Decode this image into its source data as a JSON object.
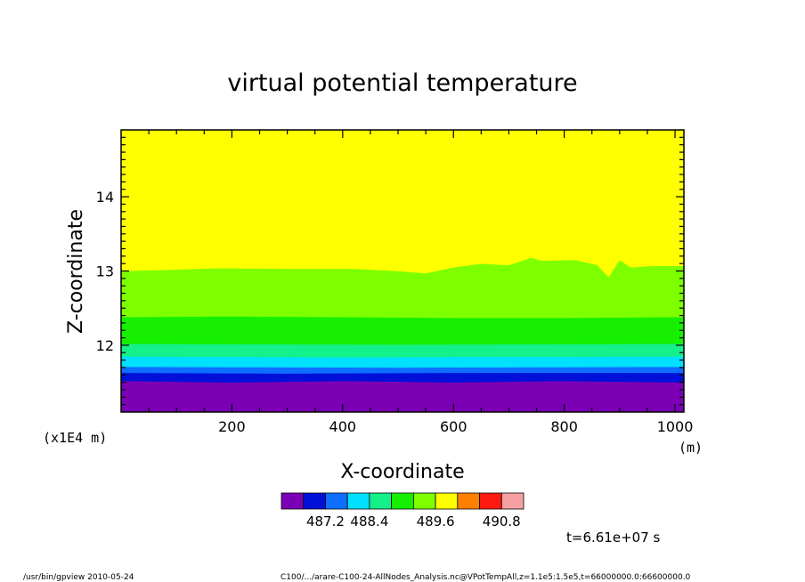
{
  "chart_data": {
    "type": "contour",
    "title": "virtual potential temperature",
    "xlabel": "X-coordinate",
    "ylabel": "Z-coordinate",
    "x_unit": "(m)",
    "y_scale_note": "(x1E4 m)",
    "xlim": [
      0,
      1016
    ],
    "ylim": [
      11.1,
      14.9
    ],
    "xticks": [
      200,
      400,
      600,
      800,
      1000
    ],
    "yticks": [
      12,
      13,
      14
    ],
    "colorbar": {
      "colors": [
        "#7b00b5",
        "#0010d8",
        "#0d6eff",
        "#00e0ff",
        "#14f08a",
        "#16f000",
        "#7dff00",
        "#ffff00",
        "#ff7f00",
        "#ff1a10",
        "#f5a0a0"
      ],
      "tick_labels": [
        "487.2",
        "488.4",
        "489.6",
        "490.8"
      ],
      "tick_after_index": [
        1,
        3,
        6,
        9
      ]
    },
    "bands": [
      {
        "name": "l1",
        "color": "#7b00b5",
        "lower": 11.1,
        "upper": [
          [
            0,
            11.52
          ],
          [
            200,
            11.5
          ],
          [
            400,
            11.52
          ],
          [
            600,
            11.5
          ],
          [
            800,
            11.52
          ],
          [
            1016,
            11.5
          ]
        ]
      },
      {
        "name": "l2",
        "color": "#0010d8",
        "lower": [
          [
            0,
            11.52
          ],
          [
            200,
            11.5
          ],
          [
            400,
            11.52
          ],
          [
            600,
            11.5
          ],
          [
            800,
            11.52
          ],
          [
            1016,
            11.5
          ]
        ],
        "upper": [
          [
            0,
            11.63
          ],
          [
            300,
            11.62
          ],
          [
            600,
            11.63
          ],
          [
            1016,
            11.63
          ]
        ]
      },
      {
        "name": "l3",
        "color": "#0d6eff",
        "lower": [
          [
            0,
            11.63
          ],
          [
            300,
            11.62
          ],
          [
            600,
            11.63
          ],
          [
            1016,
            11.63
          ]
        ],
        "upper": [
          [
            0,
            11.71
          ],
          [
            500,
            11.7
          ],
          [
            1016,
            11.71
          ]
        ]
      },
      {
        "name": "l4",
        "color": "#00e0ff",
        "lower": [
          [
            0,
            11.71
          ],
          [
            500,
            11.7
          ],
          [
            1016,
            11.71
          ]
        ],
        "upper": [
          [
            0,
            11.85
          ],
          [
            400,
            11.84
          ],
          [
            1016,
            11.85
          ]
        ]
      },
      {
        "name": "l5",
        "color": "#14f08a",
        "lower": [
          [
            0,
            11.85
          ],
          [
            400,
            11.84
          ],
          [
            1016,
            11.85
          ]
        ],
        "upper": [
          [
            0,
            12.02
          ],
          [
            500,
            12.01
          ],
          [
            1016,
            12.02
          ]
        ]
      },
      {
        "name": "l6",
        "color": "#16f000",
        "lower": [
          [
            0,
            12.02
          ],
          [
            500,
            12.01
          ],
          [
            1016,
            12.02
          ]
        ],
        "upper": [
          [
            0,
            12.38
          ],
          [
            200,
            12.39
          ],
          [
            400,
            12.38
          ],
          [
            600,
            12.37
          ],
          [
            800,
            12.37
          ],
          [
            1016,
            12.38
          ]
        ]
      },
      {
        "name": "l7",
        "color": "#7dff00",
        "lower": [
          [
            0,
            12.38
          ],
          [
            200,
            12.39
          ],
          [
            400,
            12.38
          ],
          [
            600,
            12.37
          ],
          [
            800,
            12.37
          ],
          [
            1016,
            12.38
          ]
        ],
        "upper": [
          [
            0,
            13.0
          ],
          [
            100,
            13.02
          ],
          [
            180,
            13.04
          ],
          [
            300,
            13.03
          ],
          [
            420,
            13.03
          ],
          [
            500,
            13.0
          ],
          [
            550,
            12.97
          ],
          [
            600,
            13.05
          ],
          [
            650,
            13.1
          ],
          [
            700,
            13.08
          ],
          [
            740,
            13.18
          ],
          [
            760,
            13.14
          ],
          [
            820,
            13.15
          ],
          [
            860,
            13.08
          ],
          [
            880,
            12.92
          ],
          [
            900,
            13.15
          ],
          [
            920,
            13.05
          ],
          [
            960,
            13.07
          ],
          [
            1016,
            13.07
          ]
        ]
      },
      {
        "name": "l8",
        "color": "#ffff00",
        "lower": [
          [
            0,
            13.0
          ],
          [
            100,
            13.02
          ],
          [
            180,
            13.04
          ],
          [
            300,
            13.03
          ],
          [
            420,
            13.03
          ],
          [
            500,
            13.0
          ],
          [
            550,
            12.97
          ],
          [
            600,
            13.05
          ],
          [
            650,
            13.1
          ],
          [
            700,
            13.08
          ],
          [
            740,
            13.18
          ],
          [
            760,
            13.14
          ],
          [
            820,
            13.15
          ],
          [
            860,
            13.08
          ],
          [
            880,
            12.92
          ],
          [
            900,
            13.15
          ],
          [
            920,
            13.05
          ],
          [
            960,
            13.07
          ],
          [
            1016,
            13.07
          ]
        ],
        "upper": 14.9
      }
    ]
  },
  "time_label": "t=6.61e+07 s",
  "footer_left": "/usr/bin/gpview  2010-05-24",
  "footer_right": "C100/.../arare-C100-24-AllNodes_Analysis.nc@VPotTempAll,z=1.1e5:1.5e5,t=66000000.0:66600000.0"
}
